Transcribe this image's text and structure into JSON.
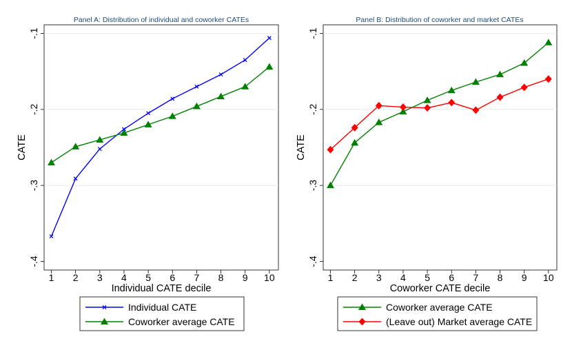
{
  "chart_data": [
    {
      "type": "line",
      "title": "Panel A: Distribution of individual and coworker CATEs",
      "xlabel": "Individual CATE decile",
      "ylabel": "CATE",
      "x": [
        1,
        2,
        3,
        4,
        5,
        6,
        7,
        8,
        9,
        10
      ],
      "xticks": [
        "1",
        "2",
        "3",
        "4",
        "5",
        "6",
        "7",
        "8",
        "9",
        "10"
      ],
      "yticks": [
        "-.4",
        "-.3",
        "-.2",
        "-.1"
      ],
      "ylim": [
        -0.4,
        -0.1
      ],
      "grid": true,
      "legend_position": "bottom",
      "series": [
        {
          "name": "Individual CATE",
          "color": "#0000ff",
          "marker": "x",
          "values": [
            -0.367,
            -0.291,
            -0.252,
            -0.226,
            -0.205,
            -0.186,
            -0.17,
            -0.154,
            -0.135,
            -0.106
          ]
        },
        {
          "name": "Coworker average CATE",
          "color": "#008000",
          "marker": "triangle",
          "values": [
            -0.27,
            -0.249,
            -0.24,
            -0.231,
            -0.22,
            -0.209,
            -0.196,
            -0.183,
            -0.17,
            -0.144
          ]
        }
      ]
    },
    {
      "type": "line",
      "title": "Panel B: Distribution of coworker and market CATEs",
      "xlabel": "Coworker CATE decile",
      "ylabel": "CATE",
      "x": [
        1,
        2,
        3,
        4,
        5,
        6,
        7,
        8,
        9,
        10
      ],
      "xticks": [
        "1",
        "2",
        "3",
        "4",
        "5",
        "6",
        "7",
        "8",
        "9",
        "10"
      ],
      "yticks": [
        "-.4",
        "-.3",
        "-.2",
        "-.1"
      ],
      "ylim": [
        -0.4,
        -0.1
      ],
      "grid": true,
      "legend_position": "bottom",
      "series": [
        {
          "name": "Coworker average CATE",
          "color": "#008000",
          "marker": "triangle",
          "values": [
            -0.3,
            -0.244,
            -0.217,
            -0.203,
            -0.188,
            -0.175,
            -0.164,
            -0.154,
            -0.139,
            -0.112
          ]
        },
        {
          "name": "(Leave out) Market average CATE",
          "color": "#ff0000",
          "marker": "diamond",
          "values": [
            -0.253,
            -0.224,
            -0.195,
            -0.197,
            -0.198,
            -0.191,
            -0.201,
            -0.184,
            -0.171,
            -0.16
          ]
        }
      ]
    }
  ]
}
